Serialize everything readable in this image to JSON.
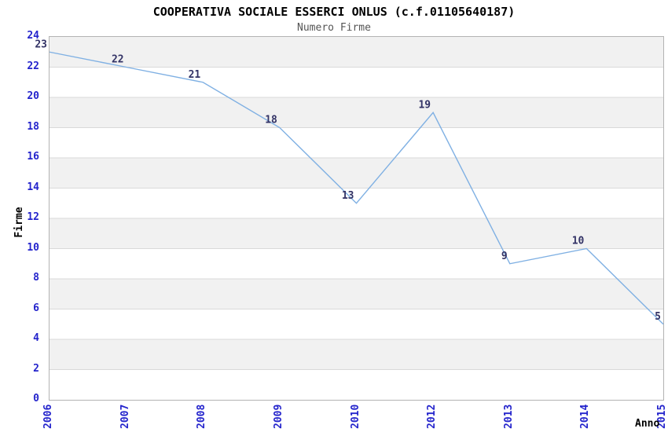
{
  "header": {
    "title": "COOPERATIVA SOCIALE ESSERCI ONLUS (c.f.01105640187)",
    "subtitle": "Numero Firme"
  },
  "chart_data": {
    "type": "line",
    "title": "COOPERATIVA SOCIALE ESSERCI ONLUS (c.f.01105640187)",
    "subtitle": "Numero Firme",
    "xlabel": "Anno",
    "ylabel": "Firme",
    "categories": [
      "2006",
      "2007",
      "2008",
      "2009",
      "2010",
      "2012",
      "2013",
      "2014",
      "2015"
    ],
    "values": [
      23,
      22,
      21,
      18,
      13,
      19,
      9,
      10,
      5
    ],
    "point_labels": [
      "23",
      "22",
      "21",
      "18",
      "13",
      "19",
      "9",
      "10",
      "5"
    ],
    "ylim": [
      0,
      24
    ],
    "y_tick_step": 2,
    "y_ticks": [
      "0",
      "2",
      "4",
      "6",
      "8",
      "10",
      "12",
      "14",
      "16",
      "18",
      "20",
      "22",
      "24"
    ],
    "grid": "horizontal-bands-alternating",
    "legend": "none",
    "markers": "none",
    "colors": {
      "line": "#7fb0e3",
      "point_label": "#333366",
      "tick_label": "#2424cc",
      "band_gray": "#f1f1f1",
      "band_white": "#ffffff",
      "gridline": "#d9d9d9",
      "plot_border": "#b3b3b3",
      "title": "#000000",
      "subtitle": "#555555",
      "axis_label": "#000000"
    }
  }
}
